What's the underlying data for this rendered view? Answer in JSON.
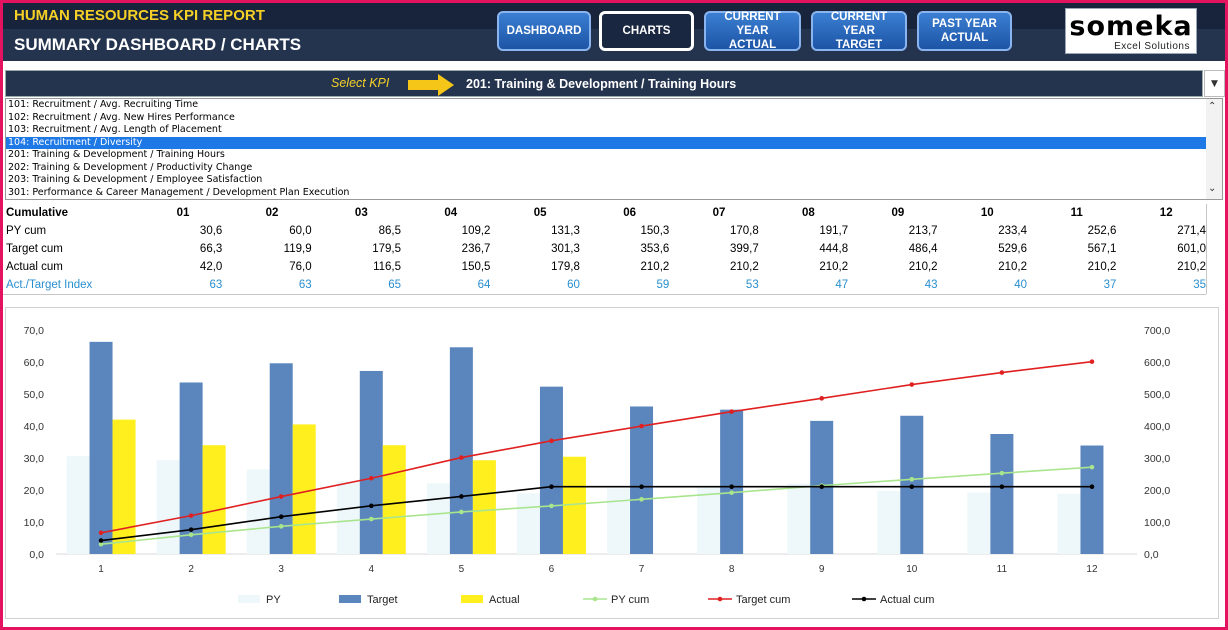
{
  "header": {
    "report_title": "HUMAN RESOURCES KPI REPORT",
    "page_title": "SUMMARY DASHBOARD / CHARTS",
    "nav": [
      {
        "label": "DASHBOARD",
        "active": false
      },
      {
        "label": "CHARTS",
        "active": true
      },
      {
        "label": "CURRENT YEAR\nACTUAL",
        "active": false
      },
      {
        "label": "CURRENT YEAR\nTARGET",
        "active": false
      },
      {
        "label": "PAST YEAR\nACTUAL",
        "active": false
      }
    ],
    "logo_word": "someka",
    "logo_sub": "Excel Solutions"
  },
  "kpi": {
    "select_label": "Select KPI",
    "selected": "201: Training & Development / Training Hours",
    "list": [
      "101: Recruitment / Avg. Recruiting Time",
      "102: Recruitment / Avg. New Hires Performance",
      "103: Recruitment / Avg. Length of Placement",
      "104: Recruitment / Diversity",
      "201: Training & Development / Training Hours",
      "202: Training & Development / Productivity Change",
      "203: Training & Development / Employee Satisfaction",
      "301: Performance & Career Management / Development Plan Execution"
    ],
    "highlighted_index": 3
  },
  "table": {
    "header": "Cumulative",
    "months": [
      "01",
      "02",
      "03",
      "04",
      "05",
      "06",
      "07",
      "08",
      "09",
      "10",
      "11",
      "12"
    ],
    "rows": [
      {
        "label": "PY cum",
        "values": [
          "30,6",
          "60,0",
          "86,5",
          "109,2",
          "131,3",
          "150,3",
          "170,8",
          "191,7",
          "213,7",
          "233,4",
          "252,6",
          "271,4"
        ]
      },
      {
        "label": "Target cum",
        "values": [
          "66,3",
          "119,9",
          "179,5",
          "236,7",
          "301,3",
          "353,6",
          "399,7",
          "444,8",
          "486,4",
          "529,6",
          "567,1",
          "601,0"
        ]
      },
      {
        "label": "Actual cum",
        "values": [
          "42,0",
          "76,0",
          "116,5",
          "150,5",
          "179,8",
          "210,2",
          "210,2",
          "210,2",
          "210,2",
          "210,2",
          "210,2",
          "210,2"
        ]
      },
      {
        "label": "Act./Target Index",
        "values": [
          "63",
          "63",
          "65",
          "64",
          "60",
          "59",
          "53",
          "47",
          "43",
          "40",
          "37",
          "35"
        ]
      }
    ]
  },
  "colors": {
    "py_bar": "#eef8fb",
    "target_bar": "#5b86bd",
    "actual_bar": "#ffef1f",
    "py_cum": "#a9e58d",
    "target_cum": "#e02020",
    "actual_cum": "#000000",
    "index_text": "#2a8fd0"
  },
  "chart_data": {
    "type": "bar",
    "categories": [
      "1",
      "2",
      "3",
      "4",
      "5",
      "6",
      "7",
      "8",
      "9",
      "10",
      "11",
      "12"
    ],
    "series": [
      {
        "name": "PY",
        "type": "bar",
        "axis": "left",
        "values": [
          30.6,
          29.4,
          26.5,
          22.7,
          22.1,
          19.0,
          20.5,
          20.9,
          22.0,
          19.7,
          19.2,
          18.8
        ]
      },
      {
        "name": "Target",
        "type": "bar",
        "axis": "left",
        "values": [
          66.3,
          53.6,
          59.6,
          57.2,
          64.6,
          52.3,
          46.1,
          45.1,
          41.6,
          43.2,
          37.5,
          33.9
        ]
      },
      {
        "name": "Actual",
        "type": "bar",
        "axis": "left",
        "values": [
          42.0,
          34.0,
          40.5,
          34.0,
          29.3,
          30.4,
          null,
          null,
          null,
          null,
          null,
          null
        ]
      },
      {
        "name": "PY cum",
        "type": "line",
        "axis": "right",
        "values": [
          30.6,
          60.0,
          86.5,
          109.2,
          131.3,
          150.3,
          170.8,
          191.7,
          213.7,
          233.4,
          252.6,
          271.4
        ]
      },
      {
        "name": "Target cum",
        "type": "line",
        "axis": "right",
        "values": [
          66.3,
          119.9,
          179.5,
          236.7,
          301.3,
          353.6,
          399.7,
          444.8,
          486.4,
          529.6,
          567.1,
          601.0
        ]
      },
      {
        "name": "Actual cum",
        "type": "line",
        "axis": "right",
        "values": [
          42.0,
          76.0,
          116.5,
          150.5,
          179.8,
          210.2,
          210.2,
          210.2,
          210.2,
          210.2,
          210.2,
          210.2
        ]
      }
    ],
    "ylim_left": [
      0,
      70
    ],
    "ylim_right": [
      0,
      700
    ],
    "yticks_left": [
      "0,0",
      "10,0",
      "20,0",
      "30,0",
      "40,0",
      "50,0",
      "60,0",
      "70,0"
    ],
    "yticks_right": [
      "0,0",
      "100,0",
      "200,0",
      "300,0",
      "400,0",
      "500,0",
      "600,0",
      "700,0"
    ],
    "legend_position": "bottom",
    "grid": false
  }
}
